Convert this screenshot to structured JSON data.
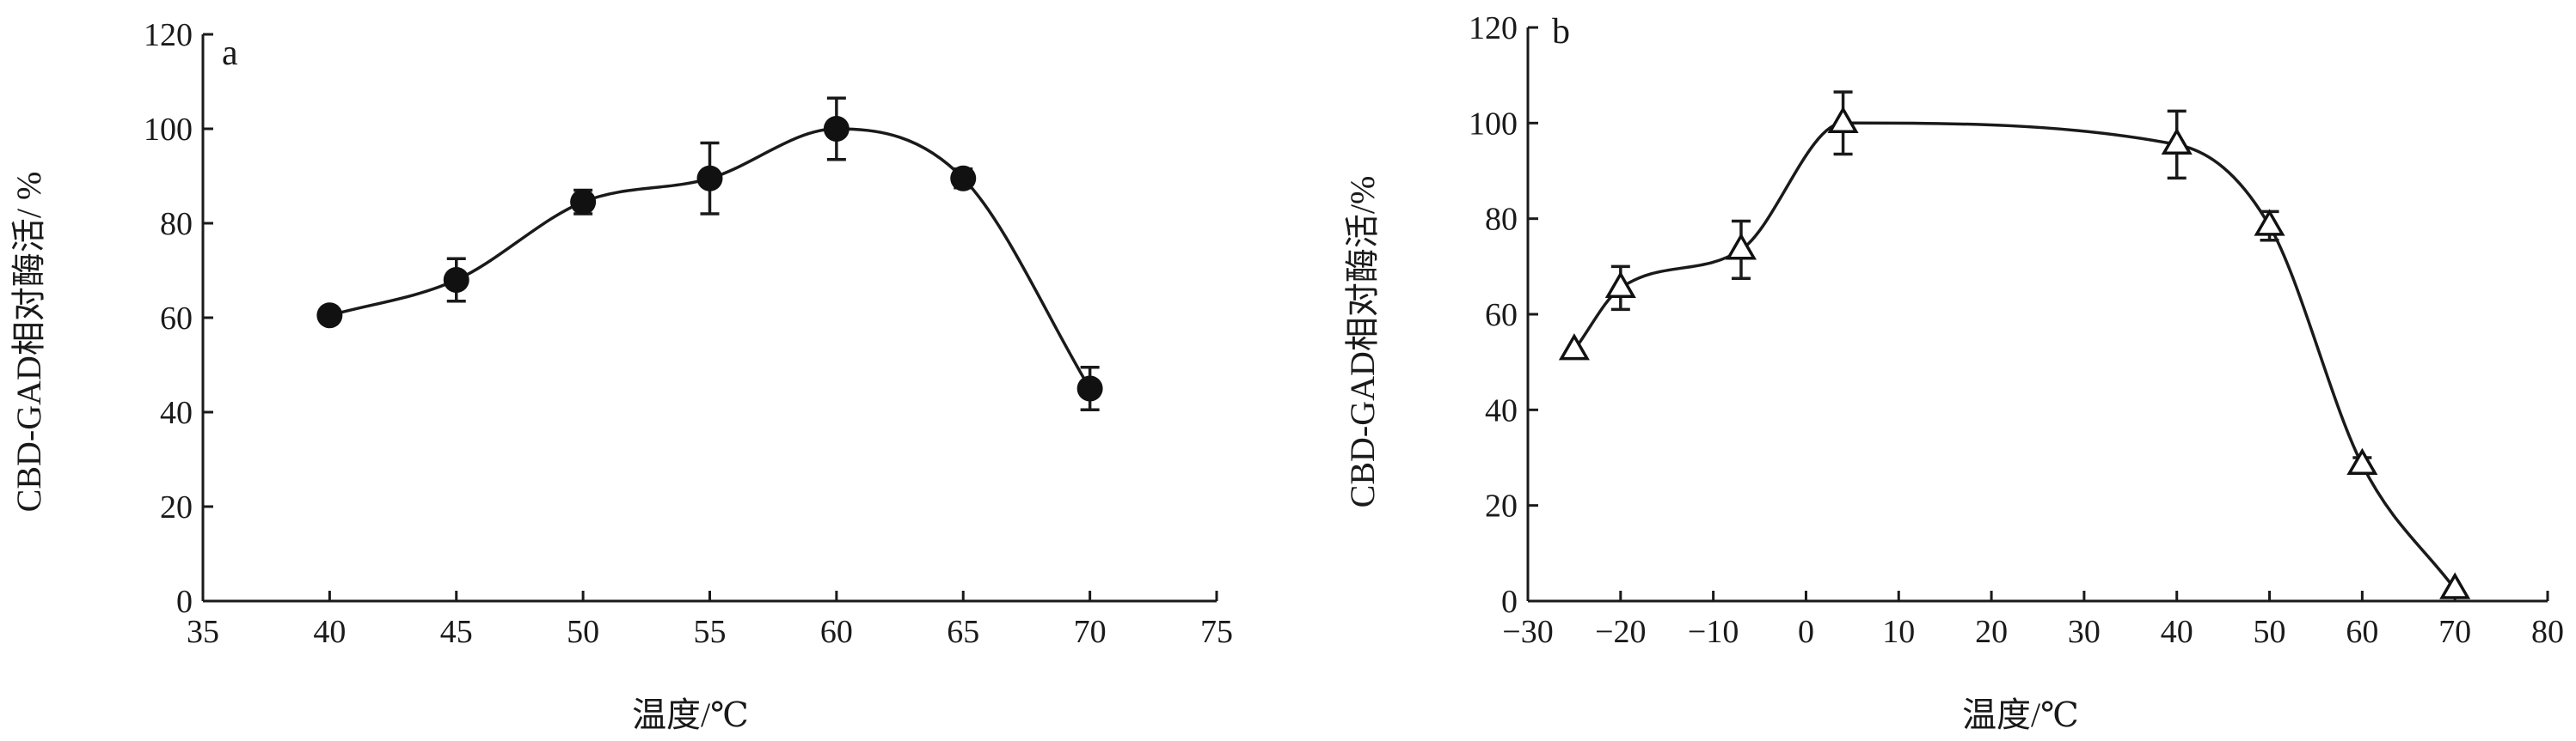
{
  "chart_data": [
    {
      "type": "line",
      "panel_label": "a",
      "xlabel": "温度/℃",
      "ylabel": "CBD-GAD相对酶活/ %",
      "xlim": [
        35,
        75
      ],
      "ylim": [
        0,
        120
      ],
      "xticks": [
        "35",
        "40",
        "45",
        "50",
        "55",
        "60",
        "65",
        "70",
        "75"
      ],
      "yticks": [
        "0",
        "20",
        "40",
        "60",
        "80",
        "100",
        "120"
      ],
      "marker": "filled-circle",
      "grid": false,
      "series": [
        {
          "x": [
            40,
            45,
            50,
            55,
            60,
            65,
            70
          ],
          "values": [
            60.5,
            68,
            84.5,
            89.5,
            100,
            89.5,
            45
          ],
          "error": [
            0,
            4.5,
            2.5,
            7.5,
            6.5,
            2,
            4.5
          ]
        }
      ]
    },
    {
      "type": "line",
      "panel_label": "b",
      "xlabel": "温度/℃",
      "ylabel": "CBD-GAD相对酶活/%",
      "xlim": [
        -30,
        80
      ],
      "ylim": [
        0,
        120
      ],
      "xticks": [
        "−30",
        "−20",
        "−10",
        "0",
        "10",
        "20",
        "30",
        "40",
        "50",
        "60",
        "70",
        "80"
      ],
      "yticks": [
        "0",
        "20",
        "40",
        "60",
        "80",
        "100",
        "120"
      ],
      "marker": "open-triangle",
      "grid": false,
      "series": [
        {
          "x": [
            -25,
            -20,
            -7,
            4,
            40,
            50,
            60,
            70
          ],
          "values": [
            52.5,
            65.5,
            73.5,
            100,
            95.5,
            78.5,
            28.5,
            2.5
          ],
          "error": [
            0,
            4.5,
            6,
            6.5,
            7,
            3,
            1.5,
            0
          ]
        }
      ]
    }
  ]
}
